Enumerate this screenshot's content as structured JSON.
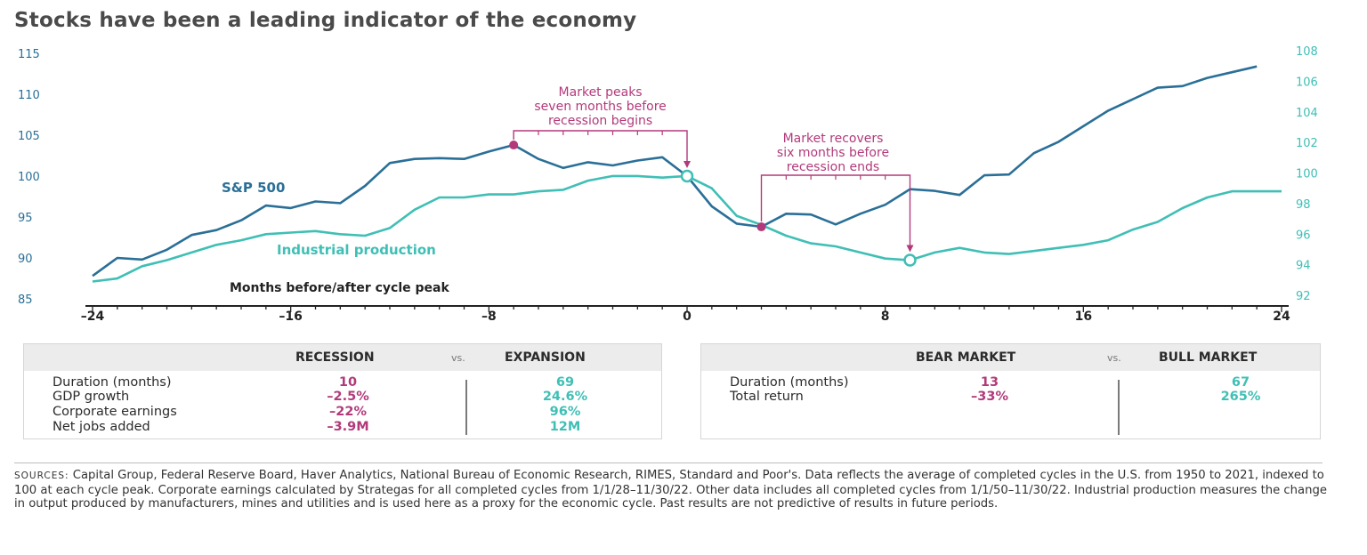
{
  "title": "Stocks have been a leading indicator of the economy",
  "chart_data": {
    "type": "line",
    "xlabel": "Months before/after cycle peak",
    "x_ticks": [
      -24,
      -16,
      -8,
      0,
      8,
      16,
      24
    ],
    "xlim": [
      -24,
      24
    ],
    "y_left": {
      "ticks": [
        85,
        90,
        95,
        100,
        105,
        110,
        115
      ],
      "lim": [
        85,
        115
      ]
    },
    "y_right": {
      "ticks": [
        92,
        94,
        96,
        98,
        100,
        102,
        104,
        106,
        108
      ],
      "lim": [
        92,
        108
      ]
    },
    "series": [
      {
        "name": "S&P 500",
        "axis": "left",
        "color": "#2a6f97",
        "x": [
          -24,
          -23,
          -22,
          -21,
          -20,
          -19,
          -18,
          -17,
          -16,
          -15,
          -14,
          -13,
          -12,
          -11,
          -10,
          -9,
          -8,
          -7,
          -6,
          -5,
          -4,
          -3,
          -2,
          -1,
          0,
          1,
          2,
          3,
          4,
          5,
          6,
          7,
          8,
          9,
          10,
          11,
          12,
          13,
          14,
          15,
          16,
          17,
          18,
          19,
          20,
          21,
          22,
          23
        ],
        "values": [
          87.8,
          90.0,
          89.8,
          91.0,
          92.8,
          93.4,
          94.6,
          96.4,
          96.1,
          96.9,
          96.7,
          98.8,
          101.6,
          102.1,
          102.2,
          102.1,
          103.0,
          103.8,
          102.1,
          101.0,
          101.7,
          101.3,
          101.9,
          102.3,
          100.0,
          96.3,
          94.2,
          93.8,
          95.4,
          95.3,
          94.1,
          95.4,
          96.5,
          98.4,
          98.2,
          97.7,
          100.1,
          100.2,
          102.8,
          104.2,
          106.1,
          108.0,
          109.4,
          110.8,
          111.0,
          112.0,
          112.7,
          113.4
        ]
      },
      {
        "name": "Industrial production",
        "axis": "right",
        "color": "#3fbfb5",
        "x": [
          -24,
          -23,
          -22,
          -21,
          -20,
          -19,
          -18,
          -17,
          -16,
          -15,
          -14,
          -13,
          -12,
          -11,
          -10,
          -9,
          -8,
          -7,
          -6,
          -5,
          -4,
          -3,
          -2,
          -1,
          0,
          1,
          2,
          3,
          4,
          5,
          6,
          7,
          8,
          9,
          10,
          11,
          12,
          13,
          14,
          15,
          16,
          17,
          18,
          19,
          20,
          21,
          22,
          23,
          24
        ],
        "values": [
          92.9,
          93.1,
          93.9,
          94.3,
          94.8,
          95.3,
          95.6,
          96.0,
          96.1,
          96.2,
          96.0,
          95.9,
          96.4,
          97.6,
          98.4,
          98.4,
          98.6,
          98.6,
          98.8,
          98.9,
          99.5,
          99.8,
          99.8,
          99.7,
          99.8,
          99.0,
          97.2,
          96.6,
          95.9,
          95.4,
          95.2,
          94.8,
          94.4,
          94.3,
          94.8,
          95.1,
          94.8,
          94.7,
          94.9,
          95.1,
          95.3,
          95.6,
          96.3,
          96.8,
          97.7,
          98.4,
          98.8,
          98.8,
          98.8
        ]
      }
    ],
    "annotations": [
      {
        "text_lines": [
          "Market peaks",
          "seven months before",
          "recession begins"
        ],
        "from_x": -7,
        "to_x": 0
      },
      {
        "text_lines": [
          "Market recovers",
          "six months before",
          "recession ends"
        ],
        "from_x": 3,
        "to_x": 9
      }
    ],
    "accent_color": "#b23a7a"
  },
  "panel_left": {
    "header_a": "RECESSION",
    "vs": "vs.",
    "header_b": "EXPANSION",
    "rows": [
      {
        "label": "Duration (months)",
        "a": "10",
        "b": "69"
      },
      {
        "label": "GDP growth",
        "a": "–2.5%",
        "b": "24.6%"
      },
      {
        "label": "Corporate earnings",
        "a": "–22%",
        "b": "96%"
      },
      {
        "label": "Net jobs added",
        "a": "–3.9M",
        "b": "12M"
      }
    ]
  },
  "panel_right": {
    "header_a": "BEAR MARKET",
    "vs": "vs.",
    "header_b": "BULL MARKET",
    "rows": [
      {
        "label": "Duration (months)",
        "a": "13",
        "b": "67"
      },
      {
        "label": "Total return",
        "a": "–33%",
        "b": "265%"
      }
    ]
  },
  "sources": {
    "label": "SOURCES:",
    "text": " Capital Group, Federal Reserve Board, Haver Analytics, National Bureau of Economic Research, RIMES, Standard and Poor's. Data reflects the average of completed cycles in the U.S. from 1950 to 2021, indexed to 100 at each cycle peak. Corporate earnings calculated by Strategas for all completed cycles from 1/1/28–11/30/22. Other data includes all completed cycles from 1/1/50–11/30/22. Industrial production measures the change in output produced by manufacturers, mines and utilities and is used here as a proxy for the economic cycle. Past results are not predictive of results in future periods."
  }
}
